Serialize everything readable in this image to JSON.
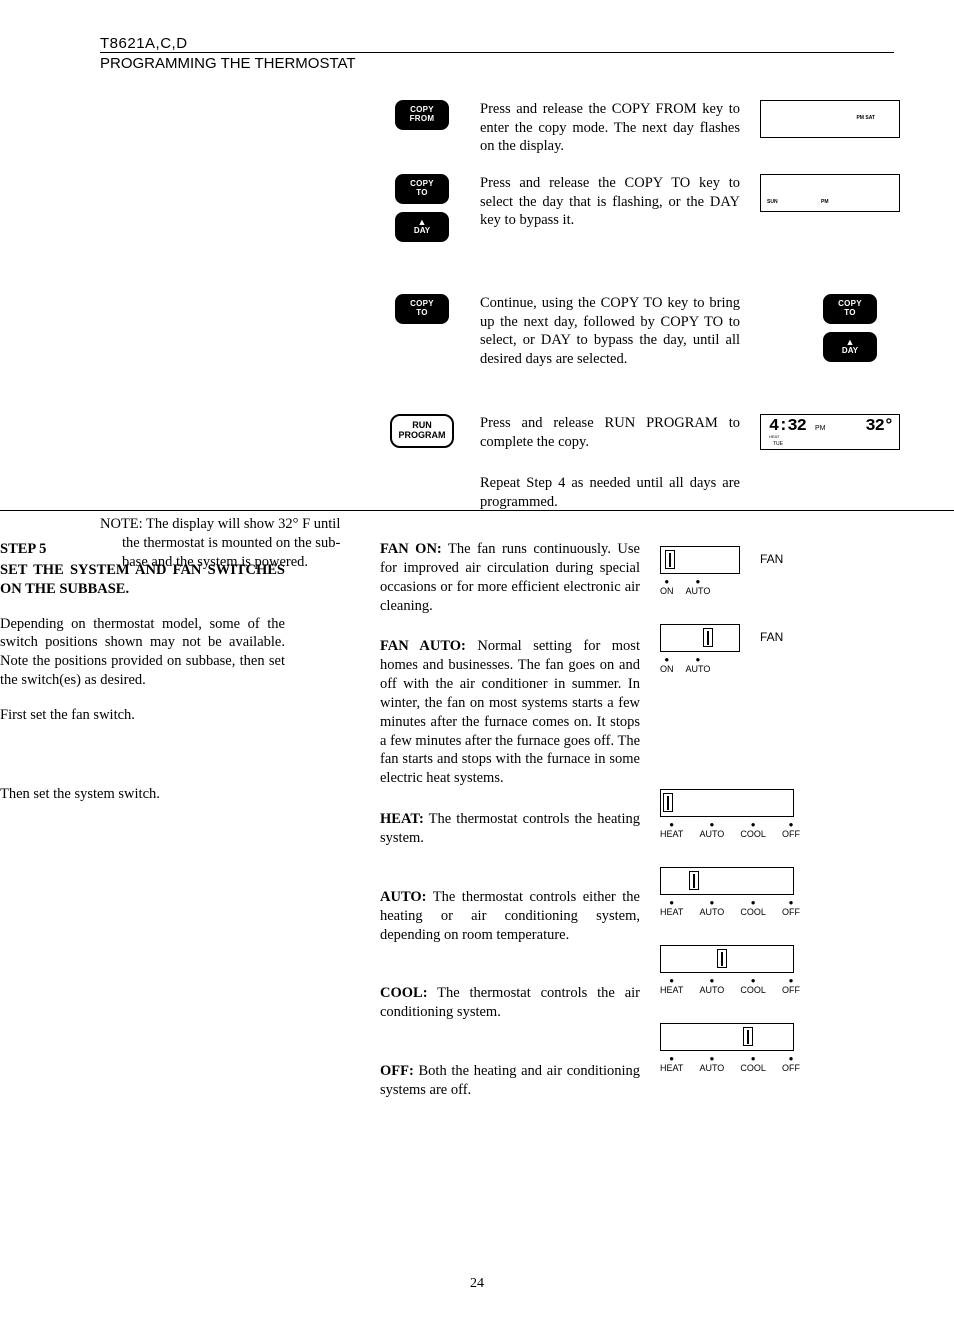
{
  "header": {
    "model": "T8621A,C,D",
    "section": "PROGRAMMING THE THERMOSTAT"
  },
  "upper": {
    "row1": {
      "btn": [
        "COPY",
        "FROM"
      ],
      "text": "Press and release the COPY FROM key to enter the copy mode. The next day flashes on the display.",
      "display": {
        "l1": "PM SAT"
      }
    },
    "row2": {
      "btn1": [
        "COPY",
        "TO"
      ],
      "btn2_up": "▲",
      "btn2_lbl": "DAY",
      "text": "Press and release the COPY TO key to select the day that is flashing, or the DAY key to bypass it.",
      "display": {
        "l1": "SUN",
        "l2": "PM"
      }
    },
    "row3": {
      "btn": [
        "COPY",
        "TO"
      ],
      "text": "Continue, using the COPY TO key to bring up the next day, followed by COPY TO to select, or DAY to bypass the day, until all desired days are selected.",
      "rbtn1": [
        "COPY",
        "TO"
      ],
      "rbtn2_up": "▲",
      "rbtn2_lbl": "DAY"
    },
    "row4": {
      "btn": [
        "RUN",
        "PROGRAM"
      ],
      "text": "Press and release RUN PROGRAM to complete the copy.",
      "display": {
        "time": "4:32",
        "ampm": "PM",
        "temp": "32°",
        "day": "TUE",
        "mode": "HEAT"
      }
    },
    "row5": {
      "text": "Repeat Step 4 as needed until all days are programmed."
    }
  },
  "note": {
    "l1": "NOTE: The display will show 32° F until",
    "l2": "the thermostat is mounted on the sub-",
    "l3": "base and the system is powered."
  },
  "step5": {
    "title_a": "STEP 5",
    "title_b": "SET THE SYSTEM AND FAN SWITCHES ON THE SUBBASE.",
    "p1": "Depending on thermostat model, some of the switch positions shown may not be available. Note the positions provided on subbase, then set the switch(es) as desired.",
    "p2": "First set the fan switch.",
    "p3": "Then set the system switch.",
    "fan_on": {
      "h": "FAN ON:",
      "t": " The fan runs continuously. Use for improved air circulation during special occasions or for more efficient electronic air cleaning."
    },
    "fan_auto": {
      "h": "FAN AUTO:",
      "t": " Normal setting for most homes and businesses. The fan goes on and off with the air conditioner in summer. In winter, the fan on most systems starts a few minutes after the furnace comes on. It stops a few minutes after the furnace goes off. The fan starts and stops with the furnace in some electric heat systems."
    },
    "heat": {
      "h": "HEAT:",
      "t": " The thermostat controls the heating system."
    },
    "auto": {
      "h": "AUTO:",
      "t": " The thermostat controls either the heating or air conditioning system, depending on room temperature."
    },
    "cool": {
      "h": "COOL:",
      "t": " The thermostat controls the air conditioning system."
    },
    "off": {
      "h": "OFF:",
      "t": " Both the heating and air conditioning systems are off."
    },
    "fan_lbl": "FAN",
    "fan_positions": [
      "ON",
      "AUTO"
    ],
    "sys_positions": [
      "HEAT",
      "AUTO",
      "COOL",
      "OFF"
    ],
    "knob": {
      "fan_on": 4,
      "fan_auto": 42,
      "heat": 2,
      "auto": 28,
      "cool": 56,
      "off": 82
    }
  },
  "pagenum": "24"
}
